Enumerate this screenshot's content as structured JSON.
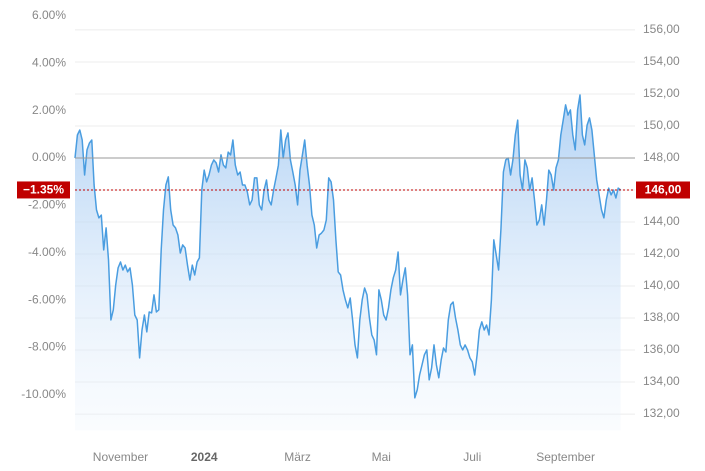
{
  "chart_data": {
    "type": "line",
    "xlim": [
      0,
      234
    ],
    "xticks": [
      {
        "value": 19,
        "label": "November"
      },
      {
        "value": 54,
        "label": "2024"
      },
      {
        "value": 93,
        "label": "März"
      },
      {
        "value": 128,
        "label": "Mai"
      },
      {
        "value": 166,
        "label": "Juli"
      },
      {
        "value": 205,
        "label": "September"
      }
    ],
    "ylim": [
      -11.5,
      6.5
    ],
    "yticks": [
      {
        "value": 6,
        "label": "6.00%"
      },
      {
        "value": 4,
        "label": "4.00%"
      },
      {
        "value": 2,
        "label": "2.00%"
      },
      {
        "value": 0,
        "label": "0.00%"
      },
      {
        "value": -2,
        "label": "-2.00%"
      },
      {
        "value": -4,
        "label": "-4.00%"
      },
      {
        "value": -6,
        "label": "-6.00%"
      },
      {
        "value": -8,
        "label": "-8.00%"
      },
      {
        "value": -10,
        "label": "-10.00%"
      }
    ],
    "y2lim": [
      130.98,
      157.62
    ],
    "y2ticks": [
      {
        "value": 156,
        "label": "156,00"
      },
      {
        "value": 154,
        "label": "154,00"
      },
      {
        "value": 152,
        "label": "152,00"
      },
      {
        "value": 150,
        "label": "150,00"
      },
      {
        "value": 148,
        "label": "148,00"
      },
      {
        "value": 146,
        "label": "146,00"
      },
      {
        "value": 144,
        "label": "144,00"
      },
      {
        "value": 142,
        "label": "142,00"
      },
      {
        "value": 140,
        "label": "140,00"
      },
      {
        "value": 138,
        "label": "138,00"
      },
      {
        "value": 136,
        "label": "136,00"
      },
      {
        "value": 134,
        "label": "134,00"
      },
      {
        "value": 132,
        "label": "132,00"
      }
    ],
    "grid": true,
    "baseline": 0,
    "last": {
      "value": -1.35,
      "label": "−1.35%"
    },
    "last_price": {
      "value": 146,
      "label": "146,00"
    },
    "series": [
      {
        "color": "#4a9de0",
        "values": [
          0,
          0.97,
          1.18,
          0.76,
          -0.72,
          0.34,
          0.63,
          0.76,
          -1.14,
          -2.19,
          -2.53,
          -2.41,
          -3.88,
          -2.95,
          -4.3,
          -6.84,
          -6.41,
          -5.36,
          -4.64,
          -4.39,
          -4.73,
          -4.52,
          -4.81,
          -4.64,
          -5.36,
          -6.63,
          -6.84,
          -8.44,
          -7.26,
          -6.63,
          -7.34,
          -6.5,
          -6.54,
          -5.78,
          -6.5,
          -6.41,
          -3.88,
          -2.19,
          -1.14,
          -0.8,
          -2.19,
          -2.83,
          -2.95,
          -3.25,
          -4.01,
          -3.67,
          -3.8,
          -4.52,
          -5.15,
          -4.52,
          -4.94,
          -4.39,
          -4.22,
          -1.35,
          -0.51,
          -1.01,
          -0.72,
          -0.3,
          -0.08,
          -0.21,
          -0.59,
          0.13,
          -0.3,
          -0.42,
          0.25,
          0.13,
          0.76,
          -0.3,
          -0.72,
          -0.59,
          -1.14,
          -1.14,
          -1.43,
          -1.98,
          -1.77,
          -0.84,
          -0.84,
          -1.98,
          -2.19,
          -1.35,
          -0.93,
          -1.77,
          -1.98,
          -1.35,
          -0.84,
          -0.3,
          1.18,
          0,
          0.76,
          1.06,
          -0.08,
          -0.59,
          -1.14,
          -1.98,
          -0.51,
          0.13,
          0.76,
          -0.3,
          -1.14,
          -2.41,
          -2.83,
          -3.8,
          -3.25,
          -3.17,
          -3.04,
          -2.62,
          -0.84,
          -1.01,
          -1.77,
          -3.46,
          -4.81,
          -4.94,
          -5.57,
          -5.99,
          -6.33,
          -5.91,
          -6.84,
          -7.89,
          -8.44,
          -6.84,
          -5.99,
          -5.49,
          -5.78,
          -6.75,
          -7.47,
          -7.68,
          -8.31,
          -5.57,
          -5.99,
          -6.63,
          -6.84,
          -6.33,
          -5.57,
          -5.06,
          -4.73,
          -3.97,
          -5.78,
          -5.15,
          -4.64,
          -5.78,
          -8.31,
          -7.89,
          -10.13,
          -9.79,
          -9.16,
          -8.74,
          -8.31,
          -8.1,
          -9.37,
          -8.86,
          -7.89,
          -8.74,
          -9.28,
          -8.52,
          -8.02,
          -8.19,
          -6.84,
          -6.2,
          -6.08,
          -6.75,
          -7.26,
          -7.89,
          -8.1,
          -7.89,
          -8.1,
          -8.44,
          -8.61,
          -9.16,
          -8.31,
          -7.26,
          -6.92,
          -7.26,
          -7.05,
          -7.47,
          -5.99,
          -3.46,
          -4.09,
          -4.73,
          -2.95,
          -0.59,
          -0.08,
          0,
          -0.72,
          -0.08,
          0.97,
          1.6,
          -0.72,
          -1.35,
          -0.08,
          -0.42,
          -1.35,
          -0.84,
          -1.77,
          -2.83,
          -2.62,
          -1.98,
          -2.83,
          -1.77,
          -0.51,
          -0.72,
          -1.35,
          -0.42,
          -0.08,
          0.97,
          1.6,
          2.24,
          1.81,
          2.03,
          0.97,
          0.34,
          2.03,
          2.66,
          0.97,
          0.55,
          1.39,
          1.69,
          1.18,
          0.13,
          -0.93,
          -1.56,
          -2.19,
          -2.53,
          -1.77,
          -1.27,
          -1.56,
          -1.35,
          -1.69,
          -1.27,
          -1.35
        ]
      }
    ]
  }
}
